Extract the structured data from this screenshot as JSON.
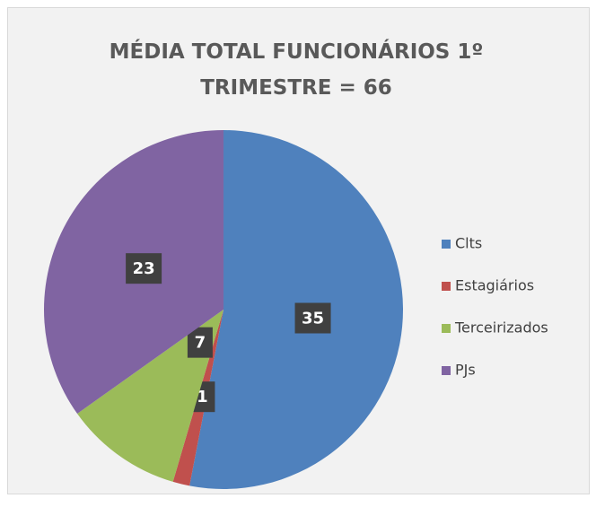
{
  "chart_data": {
    "type": "pie",
    "title": "MÉDIA TOTAL FUNCIONÁRIOS 1º TRIMESTRE = 66",
    "categories": [
      "Clts",
      "Estagiários",
      "Terceirizados",
      "PJs"
    ],
    "values": [
      35,
      1,
      7,
      23
    ],
    "colors": [
      "#4f81bd",
      "#c0504d",
      "#9bbb59",
      "#8064a2"
    ],
    "legend": "right"
  }
}
